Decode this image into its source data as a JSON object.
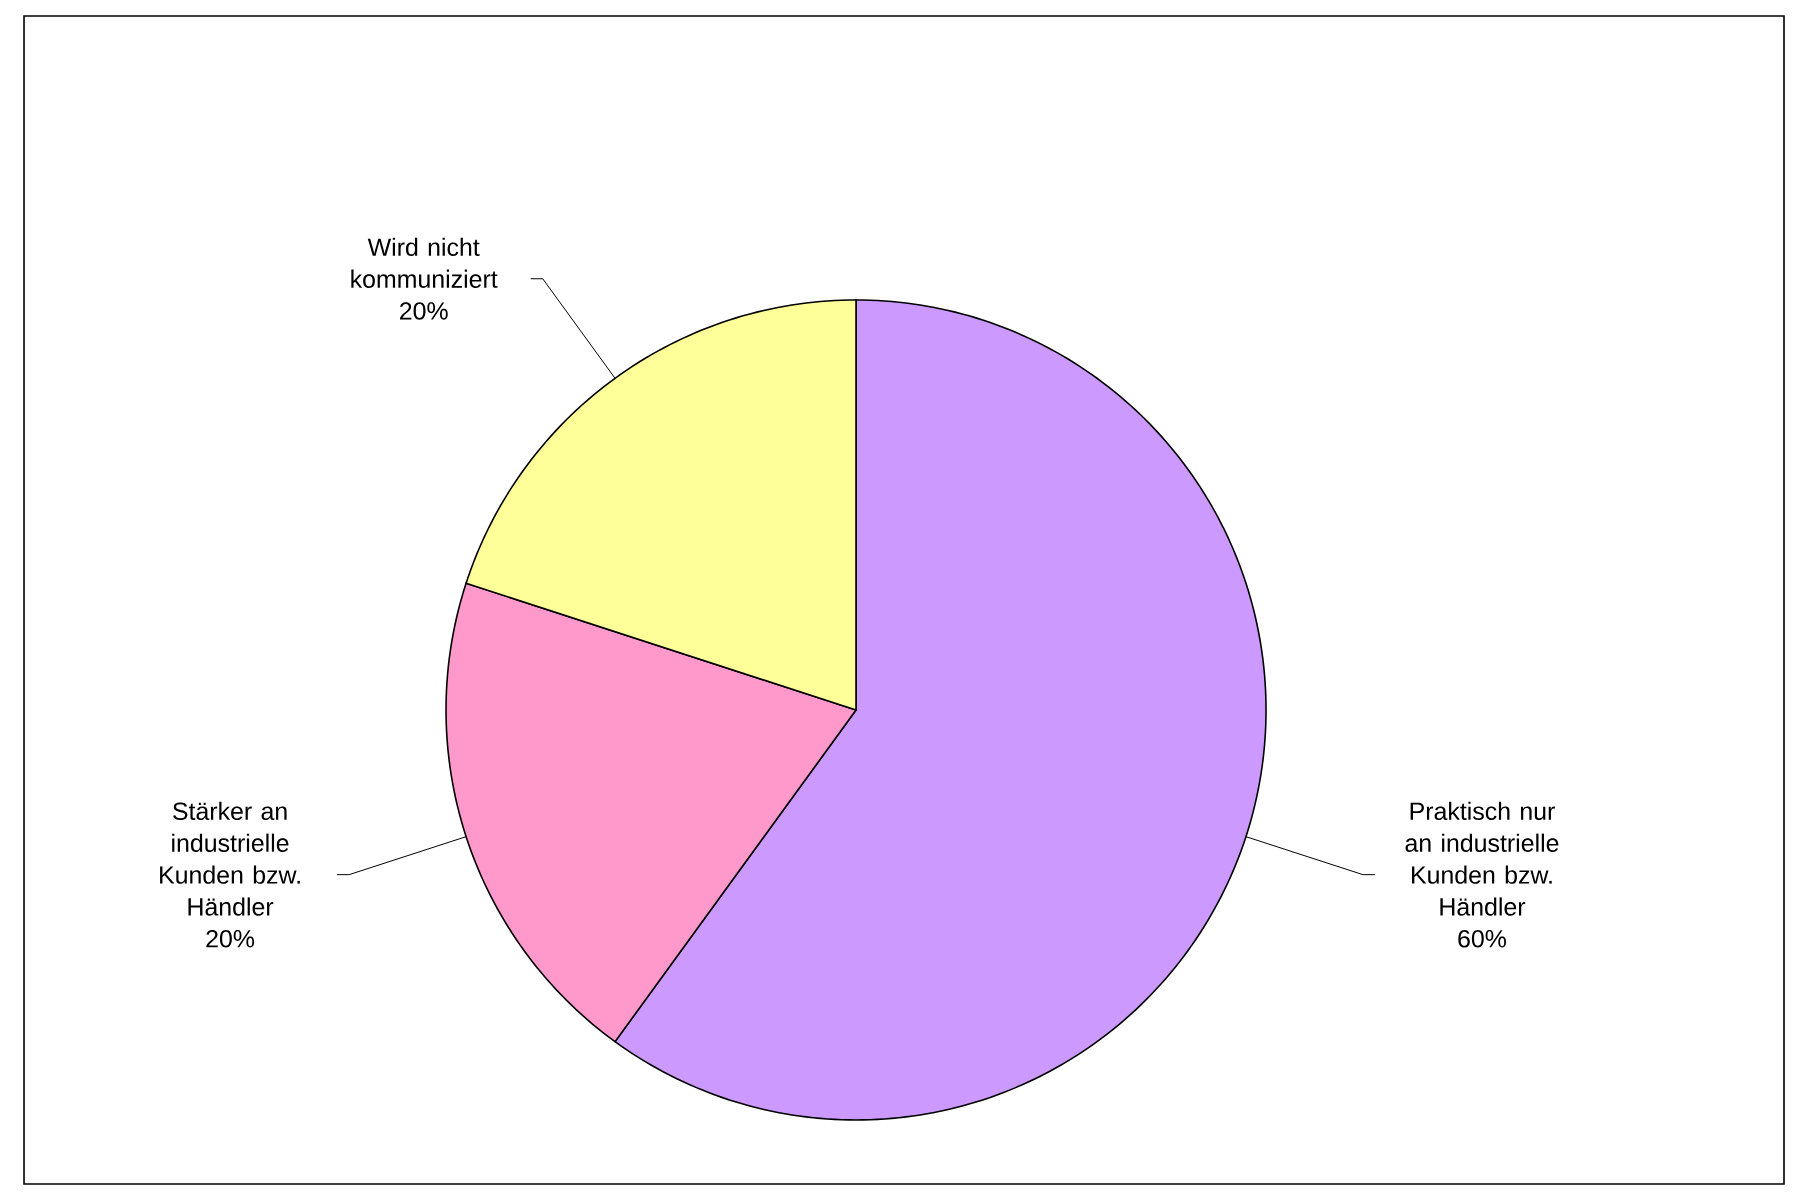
{
  "chart_data": {
    "type": "pie",
    "categories": [
      "Praktisch nur an industrielle Kunden bzw. Händler",
      "Stärker an industrielle Kunden bzw. Händler",
      "Wird nicht kommuniziert"
    ],
    "values": [
      60,
      20,
      20
    ],
    "value_labels": [
      "60%",
      "20%",
      "20%"
    ],
    "colors": [
      "#cc99ff",
      "#ff99cc",
      "#ffff99"
    ]
  }
}
